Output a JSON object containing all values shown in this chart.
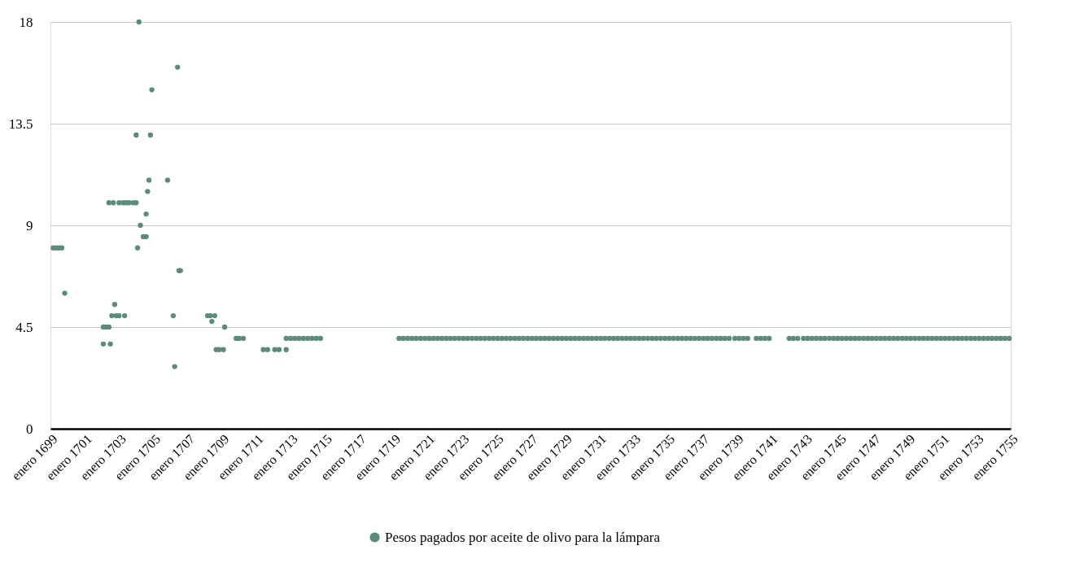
{
  "chart_data": {
    "type": "scatter",
    "x": [
      "1699-03",
      "1699-05",
      "1699-07",
      "1699-09",
      "1699-11",
      "1702-02",
      "1702-07",
      "1702-02",
      "1702-04",
      "1702-06",
      "1702-06",
      "1702-09",
      "1703-01",
      "1703-04",
      "1703-06",
      "1703-08",
      "1703-11",
      "1704-01",
      "1702-10",
      "1702-08",
      "1702-11",
      "1703-01",
      "1703-05",
      "1706-03",
      "1704-01",
      "1704-11",
      "1704-03",
      "1704-02",
      "1704-04",
      "1704-06",
      "1704-08",
      "1704-08",
      "1704-09",
      "1704-10",
      "1705-11",
      "1704-12",
      "1706-06",
      "1706-07",
      "1706-08",
      "1706-04",
      "1708-03",
      "1708-05",
      "1708-08",
      "1708-06",
      "1709-03",
      "1708-09",
      "1708-11",
      "1709-02",
      "1709-11",
      "1710-01",
      "1710-04",
      "1711-06",
      "1711-09",
      "1712-02",
      "1712-05",
      "1712-10",
      "1712-10",
      "1713-01",
      "1713-04",
      "1713-07",
      "1713-10",
      "1714-01",
      "1714-04",
      "1714-07",
      "1714-10",
      "1719-05",
      "1719-08",
      "1719-11",
      "1720-02",
      "1720-05",
      "1720-08",
      "1720-11",
      "1721-02",
      "1721-05",
      "1721-08",
      "1721-11",
      "1722-02",
      "1722-05",
      "1722-08",
      "1722-11",
      "1723-02",
      "1723-05",
      "1723-08",
      "1723-11",
      "1724-02",
      "1724-05",
      "1724-08",
      "1724-11",
      "1725-02",
      "1725-05",
      "1725-08",
      "1725-11",
      "1726-02",
      "1726-05",
      "1726-08",
      "1726-11",
      "1727-02",
      "1727-05",
      "1727-08",
      "1727-11",
      "1728-02",
      "1728-05",
      "1728-08",
      "1728-11",
      "1729-02",
      "1729-05",
      "1729-08",
      "1729-11",
      "1730-02",
      "1730-05",
      "1730-08",
      "1730-11",
      "1731-02",
      "1731-05",
      "1731-08",
      "1731-11",
      "1732-02",
      "1732-05",
      "1732-08",
      "1732-11",
      "1733-02",
      "1733-05",
      "1733-08",
      "1733-11",
      "1734-02",
      "1734-05",
      "1734-08",
      "1734-11",
      "1735-02",
      "1735-05",
      "1735-08",
      "1735-11",
      "1736-02",
      "1736-05",
      "1736-08",
      "1736-11",
      "1737-02",
      "1737-05",
      "1737-08",
      "1737-11",
      "1738-02",
      "1738-05",
      "1738-08",
      "1738-12",
      "1739-03",
      "1739-06",
      "1739-09",
      "1740-03",
      "1740-06",
      "1740-09",
      "1740-12",
      "1742-02",
      "1742-05",
      "1742-08",
      "1742-12",
      "1743-03",
      "1743-06",
      "1743-09",
      "1743-12",
      "1744-03",
      "1744-06",
      "1744-09",
      "1744-12",
      "1745-03",
      "1745-06",
      "1745-09",
      "1745-12",
      "1746-03",
      "1746-06",
      "1746-09",
      "1746-12",
      "1747-03",
      "1747-06",
      "1747-09",
      "1747-12",
      "1748-03",
      "1748-06",
      "1748-09",
      "1748-12",
      "1749-03",
      "1749-06",
      "1749-09",
      "1749-12",
      "1750-03",
      "1750-06",
      "1750-09",
      "1750-12",
      "1751-03",
      "1751-06",
      "1751-09",
      "1751-12",
      "1752-03",
      "1752-06",
      "1752-09",
      "1752-12",
      "1753-03",
      "1753-06",
      "1753-09",
      "1753-12",
      "1754-03",
      "1754-06",
      "1754-09",
      "1754-12"
    ],
    "series": [
      {
        "name": "Pesos pagados por aceite de olivo para la lámpara",
        "color": "#5b8c7a",
        "values": [
          8,
          8,
          8,
          8,
          6,
          3.75,
          3.75,
          4.5,
          4.5,
          4.5,
          10,
          10,
          10,
          10,
          10,
          10,
          10,
          10,
          5.5,
          5,
          5,
          5,
          5,
          5,
          13,
          13,
          18,
          8,
          9,
          8.5,
          8.5,
          9.5,
          10.5,
          11,
          11,
          15,
          16,
          7,
          7,
          2.75,
          5,
          5,
          5,
          4.75,
          4.5,
          3.5,
          3.5,
          3.5,
          4,
          4,
          4,
          3.5,
          3.5,
          3.5,
          3.5,
          3.5,
          4,
          4,
          4,
          4,
          4,
          4,
          4,
          4,
          4,
          4,
          4,
          4,
          4,
          4,
          4,
          4,
          4,
          4,
          4,
          4,
          4,
          4,
          4,
          4,
          4,
          4,
          4,
          4,
          4,
          4,
          4,
          4,
          4,
          4,
          4,
          4,
          4,
          4,
          4,
          4,
          4,
          4,
          4,
          4,
          4,
          4,
          4,
          4,
          4,
          4,
          4,
          4,
          4,
          4,
          4,
          4,
          4,
          4,
          4,
          4,
          4,
          4,
          4,
          4,
          4,
          4,
          4,
          4,
          4,
          4,
          4,
          4,
          4,
          4,
          4,
          4,
          4,
          4,
          4,
          4,
          4,
          4,
          4,
          4,
          4,
          4,
          4,
          4,
          4,
          4,
          4,
          4,
          4,
          4,
          4,
          4,
          4,
          4,
          4,
          4,
          4,
          4,
          4,
          4,
          4,
          4,
          4,
          4,
          4,
          4,
          4,
          4,
          4,
          4,
          4,
          4,
          4,
          4,
          4,
          4,
          4,
          4,
          4,
          4,
          4,
          4,
          4,
          4,
          4,
          4,
          4,
          4,
          4,
          4,
          4,
          4,
          4,
          4,
          4,
          4,
          4,
          4,
          4,
          4,
          4,
          4,
          4
        ]
      }
    ],
    "xlim": [
      "1699-01",
      "1755-01"
    ],
    "xticks": [
      {
        "value": "1699-01",
        "label": "enero 1699"
      },
      {
        "value": "1701-01",
        "label": "enero 1701"
      },
      {
        "value": "1703-01",
        "label": "enero 1703"
      },
      {
        "value": "1705-01",
        "label": "enero 1705"
      },
      {
        "value": "1707-01",
        "label": "enero 1707"
      },
      {
        "value": "1709-01",
        "label": "enero 1709"
      },
      {
        "value": "1711-01",
        "label": "enero 1711"
      },
      {
        "value": "1713-01",
        "label": "enero 1713"
      },
      {
        "value": "1715-01",
        "label": "enero 1715"
      },
      {
        "value": "1717-01",
        "label": "enero 1717"
      },
      {
        "value": "1719-01",
        "label": "enero 1719"
      },
      {
        "value": "1721-01",
        "label": "enero 1721"
      },
      {
        "value": "1723-01",
        "label": "enero 1723"
      },
      {
        "value": "1725-01",
        "label": "enero 1725"
      },
      {
        "value": "1727-01",
        "label": "enero 1727"
      },
      {
        "value": "1729-01",
        "label": "enero 1729"
      },
      {
        "value": "1731-01",
        "label": "enero 1731"
      },
      {
        "value": "1733-01",
        "label": "enero 1733"
      },
      {
        "value": "1735-01",
        "label": "enero 1735"
      },
      {
        "value": "1737-01",
        "label": "enero 1737"
      },
      {
        "value": "1739-01",
        "label": "enero 1739"
      },
      {
        "value": "1741-01",
        "label": "enero 1741"
      },
      {
        "value": "1743-01",
        "label": "enero 1743"
      },
      {
        "value": "1745-01",
        "label": "enero 1745"
      },
      {
        "value": "1747-01",
        "label": "enero 1747"
      },
      {
        "value": "1749-01",
        "label": "enero 1749"
      },
      {
        "value": "1751-01",
        "label": "enero 1751"
      },
      {
        "value": "1753-01",
        "label": "enero 1753"
      },
      {
        "value": "1755-01",
        "label": "enero 1755"
      }
    ],
    "ylim": [
      0,
      18
    ],
    "yticks": [
      0,
      4.5,
      9,
      13.5,
      18
    ],
    "grid": "y",
    "legend": "bottom",
    "marker": "circle"
  }
}
